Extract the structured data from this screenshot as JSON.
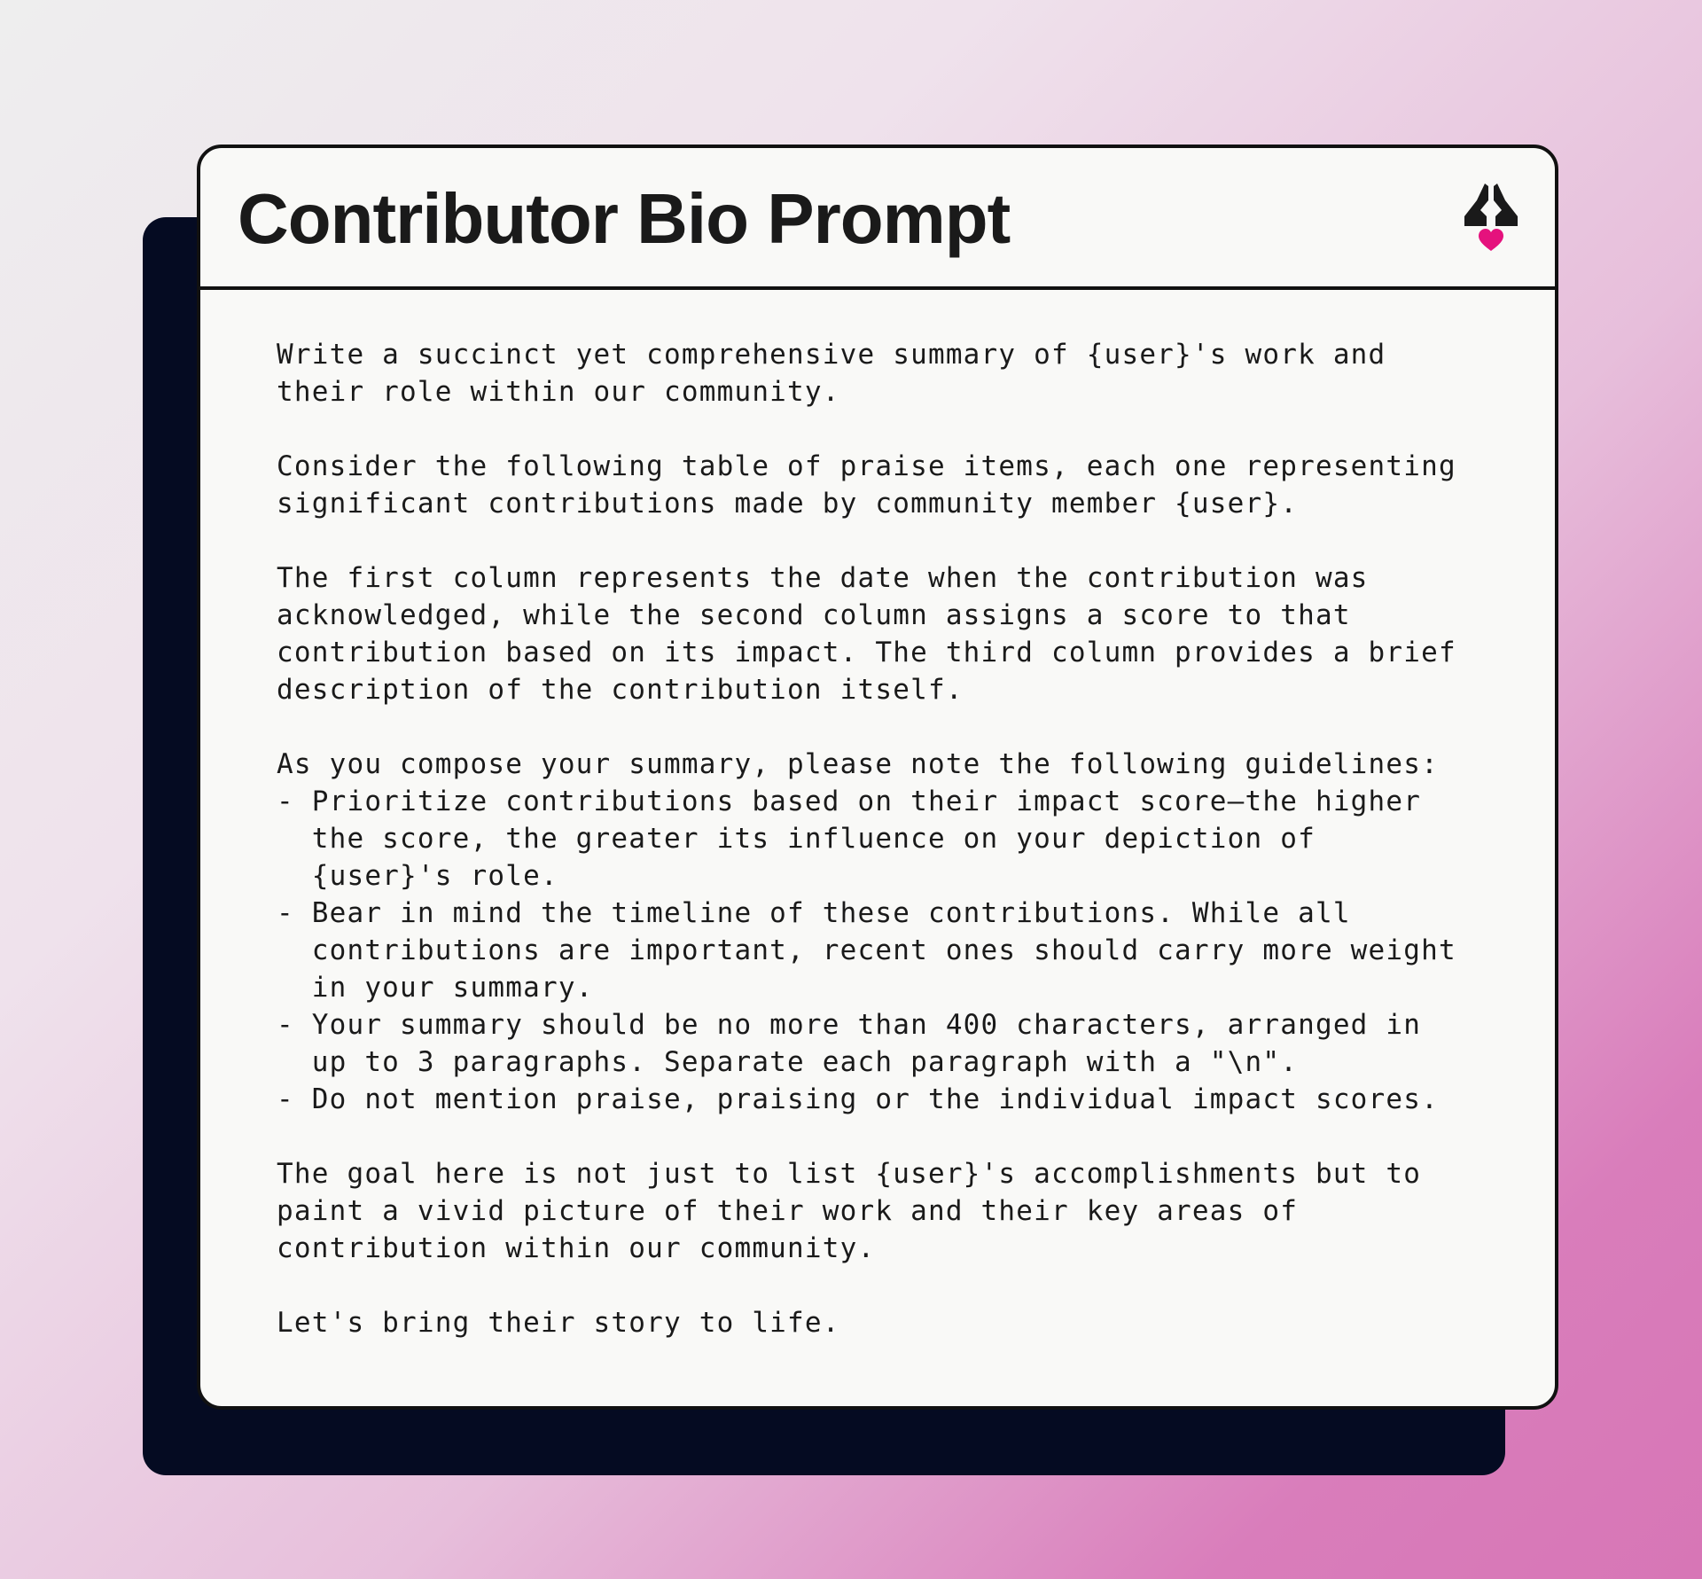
{
  "card": {
    "title": "Contributor Bio Prompt",
    "logo_icon": "praying-hands-heart-icon",
    "accent_color": "#e5127d",
    "prompt_text": "Write a succinct yet comprehensive summary of {user}'s work and\ntheir role within our community.\n\nConsider the following table of praise items, each one representing\nsignificant contributions made by community member {user}.\n\nThe first column represents the date when the contribution was\nacknowledged, while the second column assigns a score to that\ncontribution based on its impact. The third column provides a brief\ndescription of the contribution itself.\n\nAs you compose your summary, please note the following guidelines:\n- Prioritize contributions based on their impact score—the higher\n  the score, the greater its influence on your depiction of\n  {user}'s role.\n- Bear in mind the timeline of these contributions. While all\n  contributions are important, recent ones should carry more weight\n  in your summary.\n- Your summary should be no more than 400 characters, arranged in\n  up to 3 paragraphs. Separate each paragraph with a \"\\n\".\n- Do not mention praise, praising or the individual impact scores.\n\nThe goal here is not just to list {user}'s accomplishments but to\npaint a vivid picture of their work and their key areas of\ncontribution within our community.\n\nLet's bring their story to life."
  }
}
